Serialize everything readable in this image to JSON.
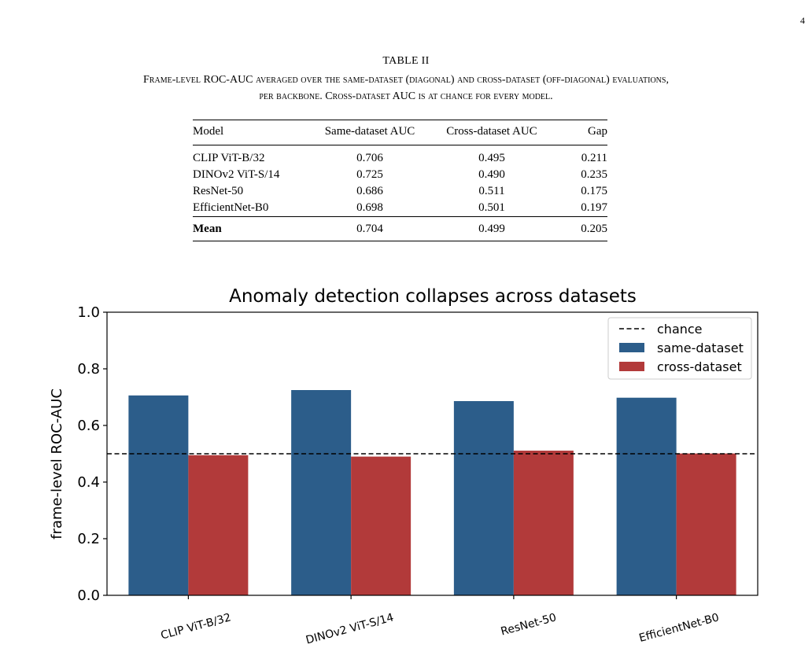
{
  "page_number": "4",
  "table": {
    "label": "TABLE II",
    "caption_line1": "Frame-level ROC-AUC averaged over the same-dataset (diagonal) and cross-dataset (off-diagonal) evaluations,",
    "caption_line2": "per backbone. Cross-dataset AUC is at chance for every model.",
    "headers": {
      "model": "Model",
      "same": "Same-dataset AUC",
      "cross": "Cross-dataset AUC",
      "gap": "Gap"
    },
    "rows": [
      {
        "model": "CLIP ViT-B/32",
        "same": "0.706",
        "cross": "0.495",
        "gap": "0.211"
      },
      {
        "model": "DINOv2 ViT-S/14",
        "same": "0.725",
        "cross": "0.490",
        "gap": "0.235"
      },
      {
        "model": "ResNet-50",
        "same": "0.686",
        "cross": "0.511",
        "gap": "0.175"
      },
      {
        "model": "EfficientNet-B0",
        "same": "0.698",
        "cross": "0.501",
        "gap": "0.197"
      }
    ],
    "mean": {
      "model": "Mean",
      "same": "0.704",
      "cross": "0.499",
      "gap": "0.205"
    }
  },
  "chart_data": {
    "type": "bar",
    "title": "Anomaly detection collapses across datasets",
    "xlabel": "",
    "ylabel": "frame-level ROC-AUC",
    "categories": [
      "CLIP ViT-B/32",
      "DINOv2 ViT-S/14",
      "ResNet-50",
      "EfficientNet-B0"
    ],
    "series": [
      {
        "name": "same-dataset",
        "values": [
          0.706,
          0.725,
          0.686,
          0.698
        ],
        "color": "#2c5d8a"
      },
      {
        "name": "cross-dataset",
        "values": [
          0.495,
          0.49,
          0.511,
          0.501
        ],
        "color": "#b23a3a"
      }
    ],
    "reference_line": {
      "name": "chance",
      "value": 0.5,
      "style": "dashed",
      "color": "#000000"
    },
    "ylim": [
      0.0,
      1.0
    ],
    "yticks": [
      "0.0",
      "0.2",
      "0.4",
      "0.6",
      "0.8",
      "1.0"
    ],
    "ytick_values": [
      0.0,
      0.2,
      0.4,
      0.6,
      0.8,
      1.0
    ],
    "grid": false,
    "legend_position": "top-right"
  }
}
